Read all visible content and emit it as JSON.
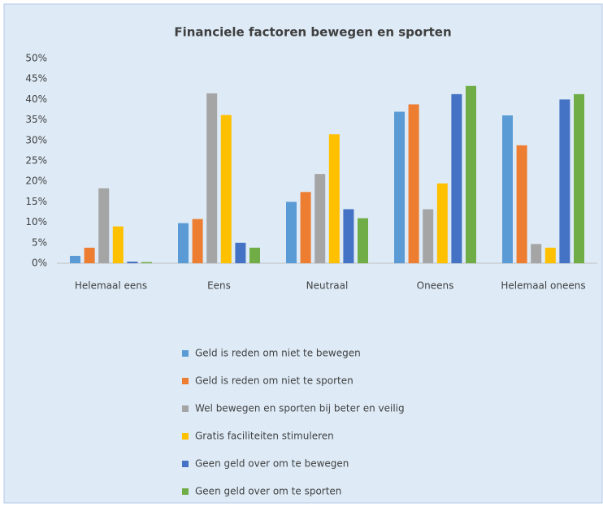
{
  "chart_data": {
    "type": "bar",
    "title": "Financiele factoren bewegen en sporten",
    "categories": [
      "Helemaal eens",
      "Eens",
      "Neutraal",
      "Oneens",
      "Helemaal oneens"
    ],
    "series": [
      {
        "name": "Geld is reden om niet te bewegen",
        "color": "#5b9bd5",
        "values": [
          1.8,
          9.8,
          15,
          37,
          36.1
        ]
      },
      {
        "name": "Geld is reden om niet te sporten",
        "color": "#ed7d31",
        "values": [
          3.8,
          10.8,
          17.4,
          38.8,
          28.8
        ]
      },
      {
        "name": "Wel bewegen en sporten bij beter en veilig",
        "color": "#a5a5a5",
        "values": [
          18.3,
          41.5,
          21.8,
          13.2,
          4.7
        ]
      },
      {
        "name": "Gratis faciliteiten stimuleren",
        "color": "#ffc000",
        "values": [
          9,
          36.2,
          31.5,
          19.5,
          3.8
        ]
      },
      {
        "name": "Geen geld over om te bewegen",
        "color": "#4472c4",
        "values": [
          0.4,
          5,
          13.2,
          41.3,
          40
        ]
      },
      {
        "name": "Geen geld over om te sporten",
        "color": "#70ad47",
        "values": [
          0.3,
          3.8,
          11,
          43.3,
          41.3
        ]
      }
    ],
    "ylim": [
      0,
      50
    ],
    "yticks": [
      {
        "value": 0,
        "label": "0%"
      },
      {
        "value": 5,
        "label": "5%"
      },
      {
        "value": 10,
        "label": "10%"
      },
      {
        "value": 15,
        "label": "15%"
      },
      {
        "value": 20,
        "label": "20%"
      },
      {
        "value": 25,
        "label": "25%"
      },
      {
        "value": 30,
        "label": "30%"
      },
      {
        "value": 35,
        "label": "35%"
      },
      {
        "value": 40,
        "label": "40%"
      },
      {
        "value": 45,
        "label": "45%"
      },
      {
        "value": 50,
        "label": "50%"
      }
    ],
    "grid": false,
    "legend": "bottom"
  }
}
